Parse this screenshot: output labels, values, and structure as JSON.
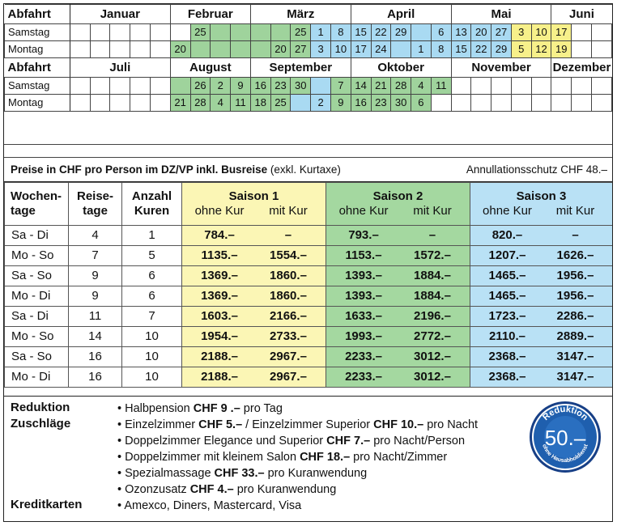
{
  "calendar": {
    "header_label": "Abfahrt",
    "day_labels": [
      "Samstag",
      "Montag"
    ],
    "months_first": [
      "Januar",
      "Februar",
      "März",
      "April",
      "Mai",
      "Juni"
    ],
    "months_second": [
      "Juli",
      "August",
      "September",
      "Oktober",
      "November",
      "Dezember"
    ],
    "first_half": {
      "saturday": [
        "",
        "",
        "",
        "",
        "",
        "",
        "25",
        "",
        "",
        "",
        "",
        "25",
        "1",
        "8",
        "15",
        "22",
        "29",
        "",
        "6",
        "13",
        "20",
        "27",
        "3",
        "10",
        "17",
        "",
        ""
      ],
      "saturday_colors": [
        "",
        "",
        "",
        "",
        "",
        "",
        "g",
        "g",
        "g",
        "g",
        "g",
        "g",
        "b",
        "b",
        "b",
        "b",
        "b",
        "b",
        "b",
        "b",
        "b",
        "b",
        "y",
        "y",
        "y",
        "",
        ""
      ],
      "monday": [
        "",
        "",
        "",
        "",
        "",
        "20",
        "",
        "",
        "",
        "",
        "20",
        "27",
        "3",
        "10",
        "17",
        "24",
        "",
        "1",
        "8",
        "15",
        "22",
        "29",
        "5",
        "12",
        "19",
        "",
        ""
      ],
      "monday_colors": [
        "",
        "",
        "",
        "",
        "",
        "g",
        "g",
        "g",
        "g",
        "g",
        "g",
        "g",
        "b",
        "b",
        "b",
        "b",
        "b",
        "b",
        "b",
        "b",
        "b",
        "b",
        "y",
        "y",
        "y",
        "",
        ""
      ]
    },
    "second_half": {
      "saturday": [
        "",
        "",
        "",
        "",
        "",
        "",
        "26",
        "2",
        "9",
        "16",
        "23",
        "30",
        "",
        "7",
        "14",
        "21",
        "28",
        "4",
        "11",
        "",
        "",
        "",
        "",
        "",
        "",
        "",
        ""
      ],
      "saturday_colors": [
        "",
        "",
        "",
        "",
        "",
        "g",
        "g",
        "g",
        "g",
        "g",
        "g",
        "g",
        "b",
        "g",
        "g",
        "g",
        "g",
        "g",
        "g",
        "",
        "",
        "",
        "",
        "",
        "",
        "",
        ""
      ],
      "monday": [
        "",
        "",
        "",
        "",
        "",
        "21",
        "28",
        "4",
        "11",
        "18",
        "25",
        "",
        "2",
        "9",
        "16",
        "23",
        "30",
        "6",
        "",
        "",
        "",
        "",
        "",
        "",
        "",
        "",
        ""
      ],
      "monday_colors": [
        "",
        "",
        "",
        "",
        "",
        "g",
        "g",
        "g",
        "g",
        "g",
        "g",
        "b",
        "b",
        "g",
        "g",
        "g",
        "g",
        "g",
        "",
        "",
        "",
        "",
        "",
        "",
        "",
        "",
        ""
      ]
    }
  },
  "prices_title": {
    "bold": "Preise in CHF pro Person im DZ/VP inkl. Busreise",
    "normal": " (exkl. Kurtaxe)",
    "right": "Annullationsschutz CHF 48.–"
  },
  "price_table": {
    "col_weekdays": [
      "Wochen-",
      "tage"
    ],
    "col_travel_days": [
      "Reise-",
      "tage"
    ],
    "col_cures": [
      "Anzahl",
      "Kuren"
    ],
    "seasons": [
      "Saison 1",
      "Saison 2",
      "Saison 3"
    ],
    "without": "ohne Kur",
    "with": "mit Kur",
    "rows": [
      {
        "days": "Sa - Di",
        "travel": "4",
        "cures": "1",
        "p": [
          "784.–",
          "–",
          "793.–",
          "–",
          "820.–",
          "–"
        ]
      },
      {
        "days": "Mo - So",
        "travel": "7",
        "cures": "5",
        "p": [
          "1135.–",
          "1554.–",
          "1153.–",
          "1572.–",
          "1207.–",
          "1626.–"
        ]
      },
      {
        "days": "Sa - So",
        "travel": "9",
        "cures": "6",
        "p": [
          "1369.–",
          "1860.–",
          "1393.–",
          "1884.–",
          "1465.–",
          "1956.–"
        ]
      },
      {
        "days": "Mo - Di",
        "travel": "9",
        "cures": "6",
        "p": [
          "1369.–",
          "1860.–",
          "1393.–",
          "1884.–",
          "1465.–",
          "1956.–"
        ]
      },
      {
        "days": "Sa - Di",
        "travel": "11",
        "cures": "7",
        "p": [
          "1603.–",
          "2166.–",
          "1633.–",
          "2196.–",
          "1723.–",
          "2286.–"
        ]
      },
      {
        "days": "Mo - So",
        "travel": "14",
        "cures": "10",
        "p": [
          "1954.–",
          "2733.–",
          "1993.–",
          "2772.–",
          "2110.–",
          "2889.–"
        ]
      },
      {
        "days": "Sa - So",
        "travel": "16",
        "cures": "10",
        "p": [
          "2188.–",
          "2967.–",
          "2233.–",
          "3012.–",
          "2368.–",
          "3147.–"
        ]
      },
      {
        "days": "Mo - Di",
        "travel": "16",
        "cures": "10",
        "p": [
          "2188.–",
          "2967.–",
          "2233.–",
          "3012.–",
          "2368.–",
          "3147.–"
        ]
      }
    ]
  },
  "notes": {
    "head_reduktion": "Reduktion",
    "head_zuschlaege": "Zuschläge",
    "head_kreditkarten": "Kreditkarten",
    "items": [
      {
        "a": "Halbpension ",
        "b": "CHF 9 .–",
        "c": " pro Tag"
      },
      {
        "a": "Einzelzimmer ",
        "b": "CHF 5.–",
        "c": " / Einzelzimmer Superior ",
        "d": "CHF 10.–",
        "e": " pro Nacht"
      },
      {
        "a": "Doppelzimmer Elegance und Superior ",
        "b": "CHF 7.–",
        "c": " pro Nacht/Person"
      },
      {
        "a": "Doppelzimmer mit kleinem Salon ",
        "b": "CHF 18.–",
        "c": " pro Nacht/Zimmer"
      },
      {
        "a": "Spezialmassage ",
        "b": "CHF 33.–",
        "c": " pro Kuranwendung"
      },
      {
        "a": "Ozonzusatz ",
        "b": "CHF 4.–",
        "c": " pro Kuranwendung"
      }
    ],
    "cards": "Amexco, Diners, Mastercard, Visa"
  },
  "badge": {
    "top": "Reduktion",
    "value": "50.–",
    "bottom1": "ohne",
    "bottom2": "Hausabholdienst",
    "colors": {
      "fill": "#1f5fae",
      "ring": "#ffffff",
      "outer": "#173f86"
    }
  }
}
